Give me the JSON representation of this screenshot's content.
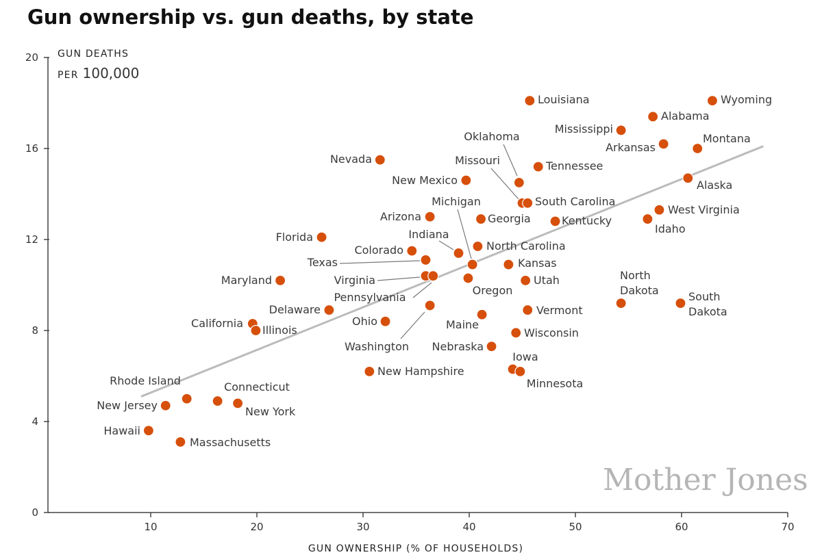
{
  "chart_data": {
    "type": "scatter",
    "title": "Gun ownership vs. gun deaths, by state",
    "xlabel": "GUN OWNERSHIP (% OF HOUSEHOLDS)",
    "ylabel_line1": "GUN DEATHS",
    "ylabel_line2_prefix": "PER",
    "ylabel_line2_number": "100,000",
    "xlim": [
      0,
      70
    ],
    "ylim": [
      0,
      20
    ],
    "xticks": [
      10,
      20,
      30,
      40,
      50,
      60,
      70
    ],
    "yticks": [
      0,
      4,
      8,
      12,
      16,
      20
    ],
    "grid": false,
    "point_color": "#d64f0b",
    "trendline_color": "#bbbbbb",
    "trendline": {
      "x": [
        9.1,
        67.7
      ],
      "y": [
        5.1,
        16.1
      ]
    },
    "watermark": "Mother Jones",
    "points": [
      {
        "state": "Wyoming",
        "x": 62.9,
        "y": 18.1
      },
      {
        "state": "Louisiana",
        "x": 45.7,
        "y": 18.1
      },
      {
        "state": "Alabama",
        "x": 57.3,
        "y": 17.4
      },
      {
        "state": "Mississippi",
        "x": 54.3,
        "y": 16.8
      },
      {
        "state": "Arkansas",
        "x": 58.3,
        "y": 16.2
      },
      {
        "state": "Montana",
        "x": 61.5,
        "y": 16.0
      },
      {
        "state": "Nevada",
        "x": 31.6,
        "y": 15.5
      },
      {
        "state": "Tennessee",
        "x": 46.5,
        "y": 15.2
      },
      {
        "state": "New Mexico",
        "x": 39.7,
        "y": 14.6
      },
      {
        "state": "Oklahoma",
        "x": 44.7,
        "y": 14.5
      },
      {
        "state": "Alaska",
        "x": 60.6,
        "y": 14.7
      },
      {
        "state": "Missouri",
        "x": 45.0,
        "y": 13.6
      },
      {
        "state": "South Carolina",
        "x": 45.5,
        "y": 13.6
      },
      {
        "state": "West Virginia",
        "x": 57.9,
        "y": 13.3
      },
      {
        "state": "Arizona",
        "x": 36.3,
        "y": 13.0
      },
      {
        "state": "Georgia",
        "x": 41.1,
        "y": 12.9
      },
      {
        "state": "Kentucky",
        "x": 48.1,
        "y": 12.8
      },
      {
        "state": "Idaho",
        "x": 56.8,
        "y": 12.9
      },
      {
        "state": "Florida",
        "x": 26.1,
        "y": 12.1
      },
      {
        "state": "Colorado",
        "x": 34.6,
        "y": 11.5
      },
      {
        "state": "North Carolina",
        "x": 40.8,
        "y": 11.7
      },
      {
        "state": "Indiana",
        "x": 39.0,
        "y": 11.4
      },
      {
        "state": "Texas",
        "x": 35.9,
        "y": 11.1
      },
      {
        "state": "Michigan",
        "x": 40.3,
        "y": 10.9
      },
      {
        "state": "Kansas",
        "x": 43.7,
        "y": 10.9
      },
      {
        "state": "Maryland",
        "x": 22.2,
        "y": 10.2
      },
      {
        "state": "Virginia",
        "x": 35.9,
        "y": 10.4
      },
      {
        "state": "Pennsylvania",
        "x": 36.6,
        "y": 10.4
      },
      {
        "state": "Oregon",
        "x": 39.9,
        "y": 10.3
      },
      {
        "state": "Utah",
        "x": 45.3,
        "y": 10.2
      },
      {
        "state": "North Dakota",
        "x": 54.3,
        "y": 9.2
      },
      {
        "state": "South Dakota",
        "x": 59.9,
        "y": 9.2
      },
      {
        "state": "Washington",
        "x": 36.3,
        "y": 9.1
      },
      {
        "state": "Delaware",
        "x": 26.8,
        "y": 8.9
      },
      {
        "state": "Vermont",
        "x": 45.5,
        "y": 8.9
      },
      {
        "state": "Maine",
        "x": 41.2,
        "y": 8.7
      },
      {
        "state": "Ohio",
        "x": 32.1,
        "y": 8.4
      },
      {
        "state": "California",
        "x": 19.6,
        "y": 8.3
      },
      {
        "state": "Illinois",
        "x": 19.9,
        "y": 8.0
      },
      {
        "state": "Wisconsin",
        "x": 44.4,
        "y": 7.9
      },
      {
        "state": "Nebraska",
        "x": 42.1,
        "y": 7.3
      },
      {
        "state": "Iowa",
        "x": 44.1,
        "y": 6.3
      },
      {
        "state": "Minnesota",
        "x": 44.8,
        "y": 6.2
      },
      {
        "state": "New Hampshire",
        "x": 30.6,
        "y": 6.2
      },
      {
        "state": "Rhode Island",
        "x": 13.4,
        "y": 5.0
      },
      {
        "state": "Connecticut",
        "x": 16.3,
        "y": 4.9
      },
      {
        "state": "New York",
        "x": 18.2,
        "y": 4.8
      },
      {
        "state": "New Jersey",
        "x": 11.4,
        "y": 4.7
      },
      {
        "state": "Hawaii",
        "x": 9.8,
        "y": 3.6
      },
      {
        "state": "Massachusetts",
        "x": 12.8,
        "y": 3.1
      }
    ]
  }
}
